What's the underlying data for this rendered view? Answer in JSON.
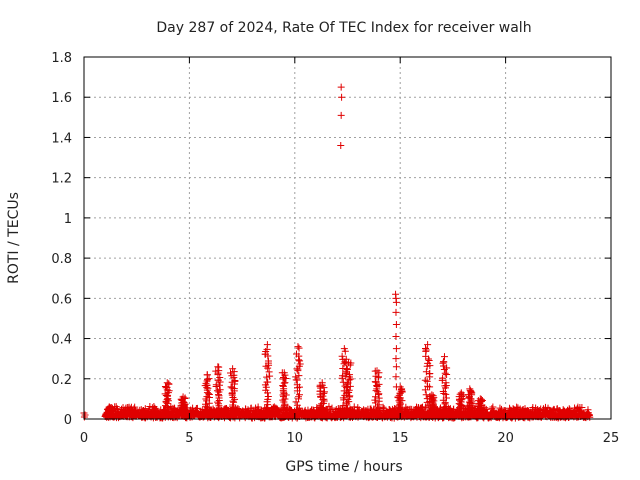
{
  "chart_data": {
    "type": "scatter",
    "title": "Day 287 of 2024, Rate Of TEC Index for receiver walh",
    "xlabel": "GPS time / hours",
    "ylabel": "ROTI / TECUs",
    "xlim": [
      0,
      25
    ],
    "ylim": [
      0,
      1.8
    ],
    "xticks": [
      "0",
      "5",
      "10",
      "15",
      "20",
      "25"
    ],
    "yticks": [
      "0",
      "0.2",
      "0.4",
      "0.6",
      "0.8",
      "1",
      "1.2",
      "1.4",
      "1.6",
      "1.8"
    ],
    "grid": true,
    "marker": "plus",
    "color": "#e00000",
    "series": [
      {
        "points": [
          [
            0.0,
            0.03
          ],
          [
            0.02,
            0.01
          ],
          [
            0.05,
            0.02
          ],
          [
            12.2,
            1.65
          ],
          [
            12.22,
            1.6
          ],
          [
            12.2,
            1.51
          ],
          [
            12.18,
            1.36
          ],
          [
            14.78,
            0.62
          ],
          [
            14.8,
            0.6
          ],
          [
            14.82,
            0.58
          ],
          [
            14.8,
            0.53
          ],
          [
            14.82,
            0.47
          ],
          [
            14.8,
            0.41
          ],
          [
            14.82,
            0.35
          ],
          [
            14.8,
            0.3
          ],
          [
            14.82,
            0.26
          ],
          [
            14.8,
            0.21
          ],
          [
            14.82,
            0.16
          ]
        ]
      }
    ],
    "background": {
      "x_range": [
        1.0,
        24.0
      ],
      "base_level": 0.02,
      "noise_level": 0.04
    },
    "spikes": [
      {
        "x": 1.2,
        "peak": 0.06
      },
      {
        "x": 3.95,
        "peak": 0.18
      },
      {
        "x": 4.7,
        "peak": 0.11
      },
      {
        "x": 5.85,
        "peak": 0.22
      },
      {
        "x": 6.35,
        "peak": 0.26
      },
      {
        "x": 7.05,
        "peak": 0.25
      },
      {
        "x": 8.7,
        "peak": 0.37
      },
      {
        "x": 9.5,
        "peak": 0.23
      },
      {
        "x": 10.15,
        "peak": 0.36
      },
      {
        "x": 11.3,
        "peak": 0.18
      },
      {
        "x": 12.35,
        "peak": 0.35
      },
      {
        "x": 12.55,
        "peak": 0.28
      },
      {
        "x": 13.9,
        "peak": 0.24
      },
      {
        "x": 15.0,
        "peak": 0.16
      },
      {
        "x": 16.3,
        "peak": 0.37
      },
      {
        "x": 16.5,
        "peak": 0.12
      },
      {
        "x": 17.1,
        "peak": 0.31
      },
      {
        "x": 17.9,
        "peak": 0.13
      },
      {
        "x": 18.3,
        "peak": 0.15
      },
      {
        "x": 18.8,
        "peak": 0.1
      }
    ]
  }
}
